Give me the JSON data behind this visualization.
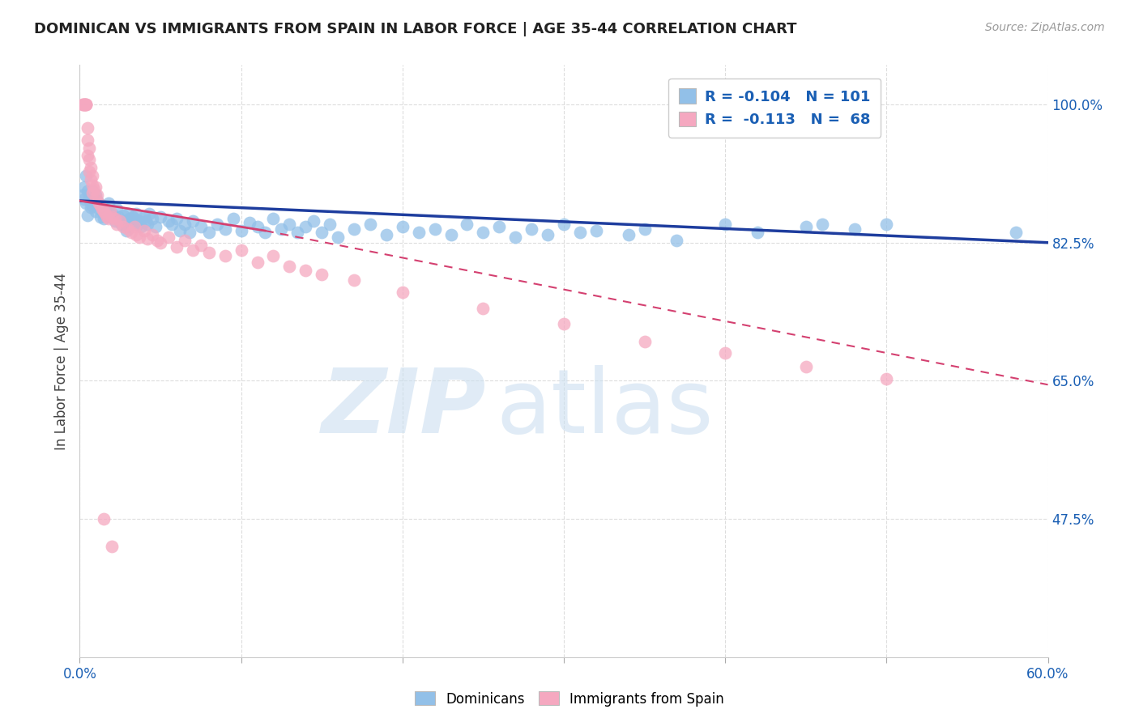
{
  "title": "DOMINICAN VS IMMIGRANTS FROM SPAIN IN LABOR FORCE | AGE 35-44 CORRELATION CHART",
  "source": "Source: ZipAtlas.com",
  "ylabel": "In Labor Force | Age 35-44",
  "xlim": [
    0.0,
    0.6
  ],
  "ylim": [
    0.3,
    1.05
  ],
  "x_ticks": [
    0.0,
    0.1,
    0.2,
    0.3,
    0.4,
    0.5,
    0.6
  ],
  "x_tick_labels": [
    "0.0%",
    "",
    "",
    "",
    "",
    "",
    "60.0%"
  ],
  "y_tick_labels_right": [
    "100.0%",
    "82.5%",
    "65.0%",
    "47.5%"
  ],
  "y_tick_values_right": [
    1.0,
    0.825,
    0.65,
    0.475
  ],
  "legend_blue_r": "-0.104",
  "legend_blue_n": "101",
  "legend_pink_r": "-0.113",
  "legend_pink_n": "68",
  "blue_color": "#92C0E8",
  "pink_color": "#F5A8C0",
  "blue_line_color": "#1E3D9E",
  "pink_line_color": "#D44070",
  "blue_scatter": [
    [
      0.002,
      0.885
    ],
    [
      0.003,
      0.895
    ],
    [
      0.003,
      0.88
    ],
    [
      0.004,
      0.91
    ],
    [
      0.004,
      0.875
    ],
    [
      0.005,
      0.89
    ],
    [
      0.005,
      0.86
    ],
    [
      0.006,
      0.88
    ],
    [
      0.007,
      0.87
    ],
    [
      0.007,
      0.885
    ],
    [
      0.008,
      0.89
    ],
    [
      0.008,
      0.872
    ],
    [
      0.009,
      0.878
    ],
    [
      0.01,
      0.885
    ],
    [
      0.01,
      0.865
    ],
    [
      0.011,
      0.878
    ],
    [
      0.012,
      0.868
    ],
    [
      0.013,
      0.858
    ],
    [
      0.014,
      0.872
    ],
    [
      0.015,
      0.862
    ],
    [
      0.015,
      0.855
    ],
    [
      0.016,
      0.868
    ],
    [
      0.017,
      0.86
    ],
    [
      0.018,
      0.875
    ],
    [
      0.019,
      0.858
    ],
    [
      0.02,
      0.862
    ],
    [
      0.021,
      0.858
    ],
    [
      0.022,
      0.852
    ],
    [
      0.023,
      0.868
    ],
    [
      0.024,
      0.858
    ],
    [
      0.025,
      0.852
    ],
    [
      0.026,
      0.848
    ],
    [
      0.027,
      0.86
    ],
    [
      0.028,
      0.852
    ],
    [
      0.029,
      0.84
    ],
    [
      0.03,
      0.845
    ],
    [
      0.03,
      0.862
    ],
    [
      0.031,
      0.855
    ],
    [
      0.032,
      0.848
    ],
    [
      0.033,
      0.858
    ],
    [
      0.034,
      0.855
    ],
    [
      0.035,
      0.862
    ],
    [
      0.036,
      0.848
    ],
    [
      0.037,
      0.852
    ],
    [
      0.038,
      0.845
    ],
    [
      0.04,
      0.858
    ],
    [
      0.041,
      0.852
    ],
    [
      0.042,
      0.848
    ],
    [
      0.043,
      0.862
    ],
    [
      0.045,
      0.855
    ],
    [
      0.047,
      0.845
    ],
    [
      0.05,
      0.858
    ],
    [
      0.055,
      0.852
    ],
    [
      0.057,
      0.848
    ],
    [
      0.06,
      0.855
    ],
    [
      0.062,
      0.84
    ],
    [
      0.065,
      0.848
    ],
    [
      0.068,
      0.838
    ],
    [
      0.07,
      0.852
    ],
    [
      0.075,
      0.845
    ],
    [
      0.08,
      0.838
    ],
    [
      0.085,
      0.848
    ],
    [
      0.09,
      0.842
    ],
    [
      0.095,
      0.855
    ],
    [
      0.1,
      0.84
    ],
    [
      0.105,
      0.85
    ],
    [
      0.11,
      0.845
    ],
    [
      0.115,
      0.838
    ],
    [
      0.12,
      0.855
    ],
    [
      0.125,
      0.842
    ],
    [
      0.13,
      0.848
    ],
    [
      0.135,
      0.838
    ],
    [
      0.14,
      0.845
    ],
    [
      0.145,
      0.852
    ],
    [
      0.15,
      0.838
    ],
    [
      0.155,
      0.848
    ],
    [
      0.16,
      0.832
    ],
    [
      0.17,
      0.842
    ],
    [
      0.18,
      0.848
    ],
    [
      0.19,
      0.835
    ],
    [
      0.2,
      0.845
    ],
    [
      0.21,
      0.838
    ],
    [
      0.22,
      0.842
    ],
    [
      0.23,
      0.835
    ],
    [
      0.24,
      0.848
    ],
    [
      0.25,
      0.838
    ],
    [
      0.26,
      0.845
    ],
    [
      0.27,
      0.832
    ],
    [
      0.28,
      0.842
    ],
    [
      0.29,
      0.835
    ],
    [
      0.3,
      0.848
    ],
    [
      0.31,
      0.838
    ],
    [
      0.32,
      0.84
    ],
    [
      0.34,
      0.835
    ],
    [
      0.35,
      0.842
    ],
    [
      0.37,
      0.828
    ],
    [
      0.4,
      0.848
    ],
    [
      0.42,
      0.838
    ],
    [
      0.45,
      0.845
    ],
    [
      0.46,
      0.848
    ],
    [
      0.48,
      0.842
    ],
    [
      0.5,
      0.848
    ],
    [
      0.58,
      0.838
    ]
  ],
  "pink_scatter": [
    [
      0.002,
      1.0
    ],
    [
      0.002,
      1.0
    ],
    [
      0.003,
      1.0
    ],
    [
      0.003,
      1.0
    ],
    [
      0.003,
      1.0
    ],
    [
      0.004,
      1.0
    ],
    [
      0.004,
      1.0
    ],
    [
      0.004,
      1.0
    ],
    [
      0.005,
      0.97
    ],
    [
      0.005,
      0.955
    ],
    [
      0.005,
      0.935
    ],
    [
      0.006,
      0.93
    ],
    [
      0.006,
      0.915
    ],
    [
      0.006,
      0.945
    ],
    [
      0.007,
      0.92
    ],
    [
      0.007,
      0.905
    ],
    [
      0.008,
      0.898
    ],
    [
      0.008,
      0.888
    ],
    [
      0.008,
      0.91
    ],
    [
      0.009,
      0.892
    ],
    [
      0.01,
      0.882
    ],
    [
      0.01,
      0.895
    ],
    [
      0.011,
      0.885
    ],
    [
      0.012,
      0.875
    ],
    [
      0.013,
      0.872
    ],
    [
      0.014,
      0.868
    ],
    [
      0.015,
      0.865
    ],
    [
      0.016,
      0.862
    ],
    [
      0.017,
      0.858
    ],
    [
      0.018,
      0.855
    ],
    [
      0.019,
      0.865
    ],
    [
      0.02,
      0.858
    ],
    [
      0.022,
      0.855
    ],
    [
      0.023,
      0.848
    ],
    [
      0.025,
      0.852
    ],
    [
      0.027,
      0.845
    ],
    [
      0.03,
      0.842
    ],
    [
      0.032,
      0.838
    ],
    [
      0.034,
      0.845
    ],
    [
      0.035,
      0.835
    ],
    [
      0.037,
      0.832
    ],
    [
      0.04,
      0.84
    ],
    [
      0.042,
      0.83
    ],
    [
      0.045,
      0.835
    ],
    [
      0.048,
      0.828
    ],
    [
      0.05,
      0.825
    ],
    [
      0.055,
      0.832
    ],
    [
      0.06,
      0.82
    ],
    [
      0.065,
      0.828
    ],
    [
      0.07,
      0.815
    ],
    [
      0.075,
      0.822
    ],
    [
      0.08,
      0.812
    ],
    [
      0.09,
      0.808
    ],
    [
      0.1,
      0.815
    ],
    [
      0.11,
      0.8
    ],
    [
      0.12,
      0.808
    ],
    [
      0.13,
      0.795
    ],
    [
      0.14,
      0.79
    ],
    [
      0.15,
      0.785
    ],
    [
      0.17,
      0.778
    ],
    [
      0.2,
      0.762
    ],
    [
      0.25,
      0.742
    ],
    [
      0.3,
      0.722
    ],
    [
      0.35,
      0.7
    ],
    [
      0.4,
      0.685
    ],
    [
      0.45,
      0.668
    ],
    [
      0.5,
      0.652
    ],
    [
      0.015,
      0.475
    ],
    [
      0.02,
      0.44
    ]
  ],
  "grid_color": "#dddddd",
  "background_color": "#ffffff"
}
